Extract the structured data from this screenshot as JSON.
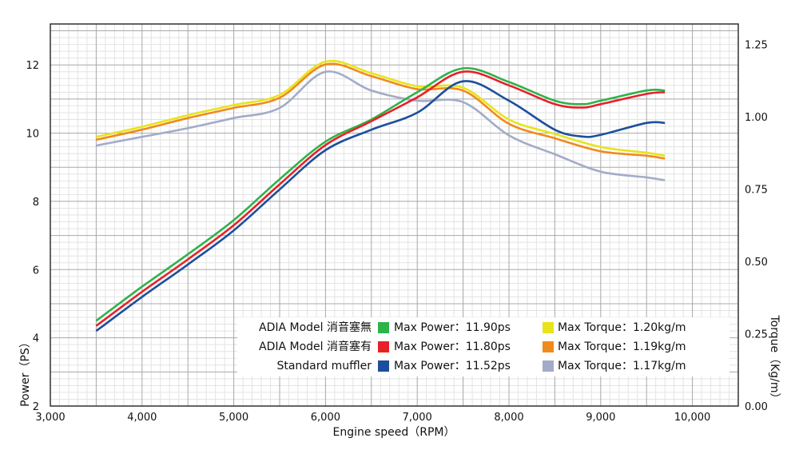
{
  "chart_data": {
    "type": "line",
    "title": "",
    "xlabel": "Engine speed（RPM）",
    "ylabel_left": "Power（PS）",
    "ylabel_right": "Torque（Kg/m）",
    "xlim": [
      3000,
      10500
    ],
    "ylim_left": [
      2,
      13.2
    ],
    "ylim_right": [
      0,
      1.32
    ],
    "x_ticks": [
      "3,000",
      "4,000",
      "5,000",
      "6,000",
      "7,000",
      "8,000",
      "9,000",
      "10,000"
    ],
    "y_left_ticks": [
      "2",
      "4",
      "6",
      "8",
      "10",
      "12"
    ],
    "y_right_ticks": [
      "0.00",
      "0.25",
      "0.50",
      "0.75",
      "1.00",
      "1.25"
    ],
    "grid": true,
    "power_series": [
      {
        "name": "ADIA Model 消音塞無",
        "color": "#2db34a",
        "x": [
          3500,
          4000,
          4500,
          5000,
          5500,
          6000,
          6500,
          7000,
          7500,
          8000,
          8500,
          8800,
          9000,
          9500,
          9700
        ],
        "y": [
          4.5,
          5.5,
          6.45,
          7.45,
          8.65,
          9.75,
          10.4,
          11.2,
          11.9,
          11.5,
          10.95,
          10.85,
          10.95,
          11.25,
          11.25
        ]
      },
      {
        "name": "ADIA Model 消音塞有",
        "color": "#e8202a",
        "x": [
          3500,
          4000,
          4500,
          5000,
          5500,
          6000,
          6500,
          7000,
          7500,
          8000,
          8500,
          8800,
          9000,
          9500,
          9700
        ],
        "y": [
          4.35,
          5.35,
          6.3,
          7.3,
          8.5,
          9.65,
          10.35,
          11.05,
          11.8,
          11.4,
          10.85,
          10.75,
          10.85,
          11.15,
          11.2
        ]
      },
      {
        "name": "Standard muffler",
        "color": "#1b4f9c",
        "x": [
          3500,
          4000,
          4500,
          5000,
          5500,
          6000,
          6500,
          7000,
          7500,
          8000,
          8500,
          8800,
          9000,
          9500,
          9700
        ],
        "y": [
          4.2,
          5.2,
          6.15,
          7.15,
          8.35,
          9.5,
          10.1,
          10.6,
          11.52,
          10.95,
          10.1,
          9.9,
          9.95,
          10.3,
          10.3
        ]
      }
    ],
    "torque_series": [
      {
        "name": "ADIA Model 消音塞無",
        "color": "#e8e41a",
        "x": [
          3500,
          4000,
          4500,
          5000,
          5500,
          6000,
          6500,
          7000,
          7500,
          8000,
          8500,
          9000,
          9500,
          9700
        ],
        "y": [
          0.93,
          0.965,
          1.005,
          1.04,
          1.075,
          1.19,
          1.15,
          1.105,
          1.1,
          0.99,
          0.94,
          0.895,
          0.875,
          0.865
        ]
      },
      {
        "name": "ADIA Model 消音塞有",
        "color": "#f08a1c",
        "x": [
          3500,
          4000,
          4500,
          5000,
          5500,
          6000,
          6500,
          7000,
          7500,
          8000,
          8500,
          9000,
          9500,
          9700
        ],
        "y": [
          0.92,
          0.955,
          0.995,
          1.03,
          1.065,
          1.18,
          1.14,
          1.095,
          1.09,
          0.975,
          0.925,
          0.88,
          0.865,
          0.855
        ]
      },
      {
        "name": "Standard muffler",
        "color": "#a3abc8",
        "x": [
          3500,
          4000,
          4500,
          5000,
          5500,
          6000,
          6500,
          7000,
          7500,
          8000,
          8500,
          9000,
          9500,
          9700
        ],
        "y": [
          0.9,
          0.93,
          0.96,
          0.995,
          1.03,
          1.155,
          1.09,
          1.055,
          1.05,
          0.935,
          0.87,
          0.81,
          0.79,
          0.78
        ]
      }
    ],
    "legend": {
      "placement": "bottom-right",
      "rows": [
        {
          "name": "ADIA Model 消音塞無",
          "power_color": "#2db34a",
          "power_text": "Max Power：11.90ps",
          "torque_color": "#e8e41a",
          "torque_text": "Max Torque：1.20kg/m"
        },
        {
          "name": "ADIA Model 消音塞有",
          "power_color": "#e8202a",
          "power_text": "Max Power：11.80ps",
          "torque_color": "#f08a1c",
          "torque_text": "Max Torque：1.19kg/m"
        },
        {
          "name": "Standard muffler",
          "power_color": "#1b4f9c",
          "power_text": "Max Power：11.52ps",
          "torque_color": "#a3abc8",
          "torque_text": "Max Torque：1.17kg/m"
        }
      ]
    }
  }
}
